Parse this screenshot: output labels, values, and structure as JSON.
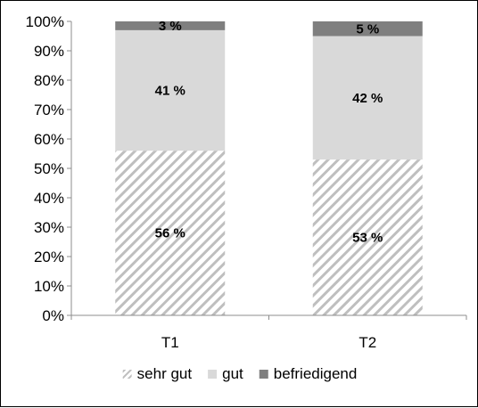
{
  "chart_data": {
    "type": "bar",
    "stacked": true,
    "categories": [
      "T1",
      "T2"
    ],
    "series": [
      {
        "name": "sehr gut",
        "values": [
          56,
          53
        ],
        "labels": [
          "56 %",
          "53 %"
        ],
        "color": "#bfbfbf",
        "pattern": "diagonal-hatch"
      },
      {
        "name": "gut",
        "values": [
          41,
          42
        ],
        "labels": [
          "41 %",
          "42 %"
        ],
        "color": "#d9d9d9",
        "pattern": "solid"
      },
      {
        "name": "befriedigend",
        "values": [
          3,
          5
        ],
        "labels": [
          "3 %",
          "5 %"
        ],
        "color": "#7f7f7f",
        "pattern": "solid"
      }
    ],
    "ylim": [
      0,
      100
    ],
    "yticks": [
      "0%",
      "10%",
      "20%",
      "30%",
      "40%",
      "50%",
      "60%",
      "70%",
      "80%",
      "90%",
      "100%"
    ],
    "grid": false,
    "legend_position": "bottom",
    "title": "",
    "xlabel": "",
    "ylabel": ""
  }
}
